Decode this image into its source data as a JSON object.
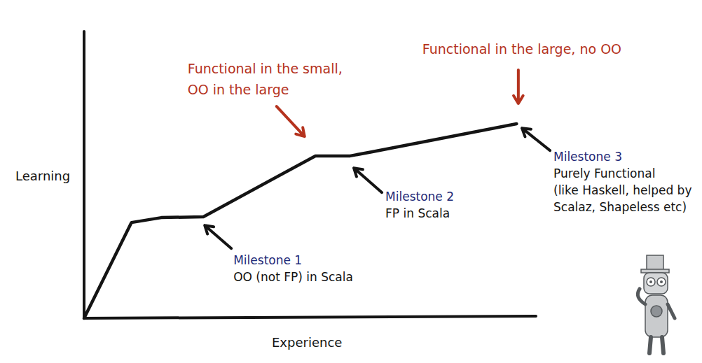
{
  "chart_data": {
    "type": "line",
    "color": "#141414",
    "tick_labels": false,
    "x_label": "Experience",
    "y_label": "Learning",
    "xlim": [
      0,
      100
    ],
    "ylim": [
      0,
      100
    ],
    "x": [
      0,
      10.5,
      17.1,
      26.4,
      51.2,
      58.9,
      63.6,
      95.7
    ],
    "values": [
      0,
      33.4,
      35.1,
      35.4,
      56.6,
      56.6,
      58.0,
      67.8
    ],
    "annotations": [
      {
        "title": "Milestone 1",
        "text": [
          "OO (not FP) in Scala"
        ],
        "x": 26.7,
        "y": 32.4,
        "color": "#1e2a78"
      },
      {
        "title": "Milestone 2",
        "text": [
          "FP in Scala"
        ],
        "x": 59.7,
        "y": 52.4,
        "color": "#1e2a78"
      },
      {
        "title": "Milestone 3",
        "text": [
          "Purely Functional",
          "(like Haskell, helped by",
          "Scalaz, Shapeless etc)"
        ],
        "x": 96.9,
        "y": 66.3,
        "color": "#1e2a78"
      },
      {
        "text": [
          "Functional in the small,",
          "OO in the large"
        ],
        "x": 48.8,
        "y": 63.4,
        "color": "#b5331e"
      },
      {
        "text": [
          "Functional in the large, no OO"
        ],
        "x": 96.1,
        "y": 74.9,
        "color": "#b5331e"
      }
    ]
  }
}
